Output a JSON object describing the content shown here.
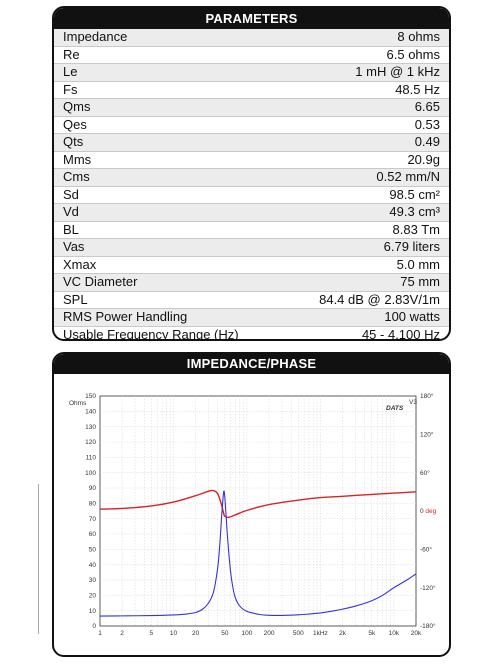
{
  "parameters": {
    "title": "PARAMETERS",
    "rows": [
      {
        "label": "Impedance",
        "value": "8 ohms"
      },
      {
        "label": "Re",
        "value": "6.5 ohms"
      },
      {
        "label": "Le",
        "value": "1 mH @ 1 kHz"
      },
      {
        "label": "Fs",
        "value": "48.5 Hz"
      },
      {
        "label": "Qms",
        "value": "6.65"
      },
      {
        "label": "Qes",
        "value": "0.53"
      },
      {
        "label": "Qts",
        "value": "0.49"
      },
      {
        "label": "Mms",
        "value": "20.9g"
      },
      {
        "label": "Cms",
        "value": "0.52 mm/N"
      },
      {
        "label": "Sd",
        "value": "98.5 cm²"
      },
      {
        "label": "Vd",
        "value": "49.3 cm³"
      },
      {
        "label": "BL",
        "value": "8.83 Tm"
      },
      {
        "label": "Vas",
        "value": "6.79 liters"
      },
      {
        "label": "Xmax",
        "value": "5.0 mm"
      },
      {
        "label": "VC Diameter",
        "value": "75 mm"
      },
      {
        "label": "SPL",
        "value": "84.4 dB @ 2.83V/1m"
      },
      {
        "label": "RMS Power Handling",
        "value": "100 watts"
      },
      {
        "label": "Usable Frequency Range (Hz)",
        "value": "45 - 4,100 Hz"
      }
    ]
  },
  "impedance_panel": {
    "title": "IMPEDANCE/PHASE",
    "logo": "DATS",
    "logo_sup": "V3"
  },
  "colors": {
    "impedance": "#3333dd",
    "phase": "#dd2222",
    "grid": "#d6d6d6",
    "logo": "#e02020"
  },
  "chart_data": {
    "type": "line",
    "x_scale": "log",
    "xlim": [
      1,
      20000
    ],
    "x_ticks": [
      {
        "v": 1,
        "label": "1"
      },
      {
        "v": 2,
        "label": "2"
      },
      {
        "v": 5,
        "label": "5"
      },
      {
        "v": 10,
        "label": "10"
      },
      {
        "v": 20,
        "label": "20"
      },
      {
        "v": 50,
        "label": "50"
      },
      {
        "v": 100,
        "label": "100"
      },
      {
        "v": 200,
        "label": "200"
      },
      {
        "v": 500,
        "label": "500"
      },
      {
        "v": 1000,
        "label": "1kHz"
      },
      {
        "v": 2000,
        "label": "2k"
      },
      {
        "v": 5000,
        "label": "5k"
      },
      {
        "v": 10000,
        "label": "10k"
      },
      {
        "v": 20000,
        "label": "20k"
      }
    ],
    "y_left": {
      "unit_label": "Ohms",
      "lim": [
        0,
        150
      ],
      "ticks": [
        0,
        10,
        20,
        30,
        40,
        50,
        60,
        70,
        80,
        90,
        100,
        110,
        120,
        130,
        140,
        150
      ]
    },
    "y_right": {
      "unit_label": "deg",
      "lim": [
        -180,
        180
      ],
      "ticks": [
        {
          "v": 180,
          "label": "180°"
        },
        {
          "v": 120,
          "label": "120°"
        },
        {
          "v": 60,
          "label": "60°"
        },
        {
          "v": 0,
          "label": "0"
        },
        {
          "v": -60,
          "label": "-60°"
        },
        {
          "v": -120,
          "label": "-120°"
        },
        {
          "v": -180,
          "label": "-180°"
        }
      ]
    },
    "grid": true,
    "series": [
      {
        "axis": "left",
        "x": [
          1,
          2,
          5,
          10,
          15,
          20,
          25,
          30,
          35,
          40,
          43,
          45,
          47,
          48.5,
          50,
          52,
          55,
          60,
          65,
          70,
          80,
          100,
          150,
          200,
          300,
          500,
          700,
          1000,
          1500,
          2000,
          3000,
          5000,
          7000,
          10000,
          15000,
          20000
        ],
        "values": [
          6.5,
          6.6,
          6.8,
          7.2,
          7.8,
          8.8,
          11,
          15,
          22,
          38,
          55,
          70,
          82,
          88,
          84,
          72,
          55,
          35,
          24,
          18,
          13,
          9.5,
          7.5,
          7.0,
          6.9,
          7.3,
          7.8,
          8.5,
          9.8,
          11,
          13,
          16.5,
          20,
          25,
          30,
          34
        ]
      },
      {
        "axis": "right",
        "x": [
          1,
          2,
          5,
          10,
          20,
          30,
          35,
          40,
          45,
          48.5,
          50,
          55,
          60,
          70,
          100,
          200,
          500,
          1000,
          2000,
          5000,
          10000,
          20000
        ],
        "values": [
          3,
          4,
          8,
          14,
          24,
          31,
          32,
          27,
          10,
          -5,
          -8,
          -10,
          -9,
          -6,
          1,
          10,
          17,
          21,
          23,
          26,
          28,
          30
        ]
      }
    ]
  }
}
